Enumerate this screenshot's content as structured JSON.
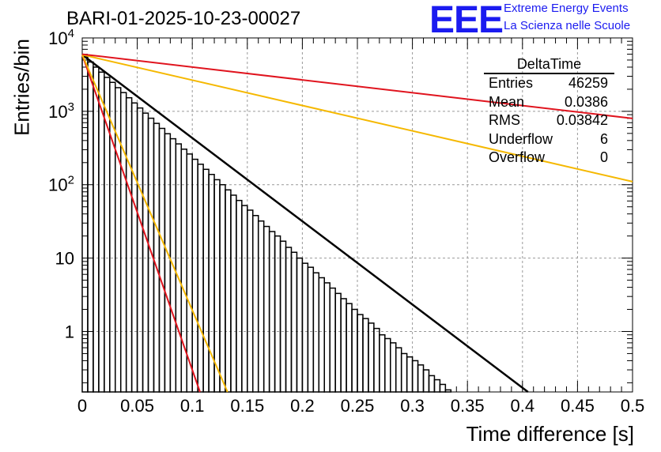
{
  "header": {
    "run_title": "BARI-01-2025-10-23-00027",
    "logo_text": "EEE",
    "logo_line1": "Extreme Energy Events",
    "logo_line2": "La Scienza nelle Scuole"
  },
  "stats": {
    "name": "DeltaTime",
    "rows": [
      {
        "label": "Entries",
        "value": "46259"
      },
      {
        "label": "Mean",
        "value": "0.0386"
      },
      {
        "label": "RMS",
        "value": "0.03842"
      },
      {
        "label": "Underflow",
        "value": "6"
      },
      {
        "label": "Overflow",
        "value": "0"
      }
    ]
  },
  "colors": {
    "histogram": "#000000",
    "fit": "#000000",
    "red": "#e0141e",
    "yellow": "#f5b800",
    "grid": "#999999",
    "logo": "#1b1bf0"
  },
  "chart_data": {
    "type": "histogram",
    "xlabel": "Time difference [s]",
    "ylabel": "Entries/bin",
    "xlim": [
      0,
      0.5
    ],
    "ylim": [
      0.15,
      10000
    ],
    "yscale": "log",
    "grid": true,
    "x_ticks": [
      "0",
      "0.05",
      "0.1",
      "0.15",
      "0.2",
      "0.25",
      "0.3",
      "0.35",
      "0.4",
      "0.45",
      "0.5"
    ],
    "y_ticks": [
      {
        "value": 1,
        "label": "1"
      },
      {
        "value": 10,
        "label": "10"
      },
      {
        "value": 100,
        "label": "10^2"
      },
      {
        "value": 1000,
        "label": "10^3"
      },
      {
        "value": 10000,
        "label": "10^4"
      }
    ],
    "bin_width": 0.005,
    "bin_counts": [
      5500,
      4700,
      4000,
      3420,
      2900,
      2480,
      2100,
      1800,
      1530,
      1300,
      1110,
      945,
      805,
      685,
      585,
      495,
      423,
      360,
      305,
      262,
      222,
      190,
      162,
      138,
      117,
      100,
      85,
      72,
      61,
      52,
      45,
      38,
      32,
      27,
      23,
      20,
      17,
      14,
      12,
      10,
      8.5,
      7.5,
      6.3,
      5.4,
      4.6,
      3.9,
      3.3,
      2.8,
      2.4,
      2.0,
      1.7,
      1.5,
      1.3,
      1.1,
      0.9,
      0.8,
      0.7,
      0.6,
      0.5,
      0.45,
      0.4,
      0.35,
      0.3,
      0.25,
      0.22,
      0.19,
      0.16,
      0.15,
      0.15,
      0.15,
      0.15,
      0.15,
      0.15,
      0.15,
      0.15,
      0.15,
      0.15,
      0.15,
      0.15,
      0.15,
      0.15,
      0.15,
      0.15,
      0.15,
      0.15,
      0.15,
      0.15,
      0.15,
      0.15,
      0.15,
      0.15,
      0.15,
      0.15,
      0.15,
      0.15,
      0.15,
      0.15,
      0.15,
      0.15,
      0.15
    ],
    "series": [
      {
        "name": "fit",
        "color": "#000000",
        "x": [
          0,
          0.405
        ],
        "y": [
          5900,
          0.15
        ]
      },
      {
        "name": "red-steep",
        "color": "#e0141e",
        "x": [
          0,
          0.107
        ],
        "y": [
          5900,
          0.15
        ]
      },
      {
        "name": "yellow-steep",
        "color": "#f5b800",
        "x": [
          0,
          0.132
        ],
        "y": [
          5900,
          0.15
        ]
      },
      {
        "name": "yellow-flat",
        "color": "#f5b800",
        "x": [
          0,
          0.5
        ],
        "y": [
          5900,
          110
        ]
      },
      {
        "name": "red-flat",
        "color": "#e0141e",
        "x": [
          0,
          0.5
        ],
        "y": [
          6000,
          800
        ]
      }
    ]
  }
}
